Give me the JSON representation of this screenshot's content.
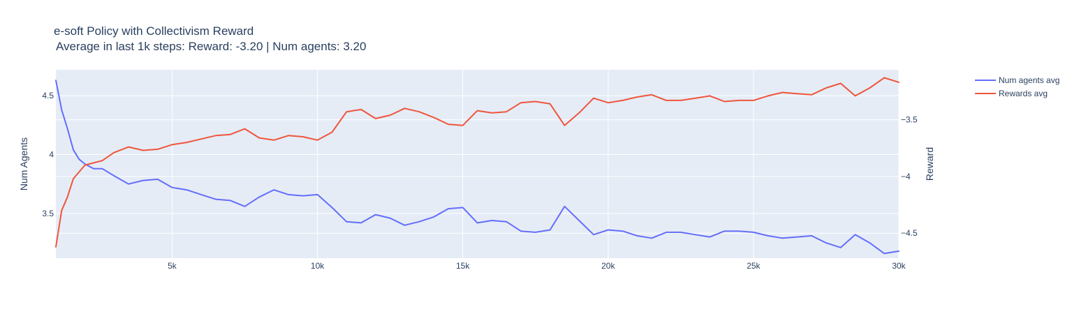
{
  "chart_data": {
    "type": "line",
    "title": "e-soft Policy with Collectivism Reward",
    "subtitle": "Average in last 1k steps:  Reward: -3.20 | Num agents: 3.20",
    "ylabel": "Num Agents",
    "y2label": "Reward",
    "xlim": [
      1000,
      30000
    ],
    "ylim": [
      3.12,
      4.72
    ],
    "y2lim": [
      -4.72,
      -3.06
    ],
    "x_ticks": [
      5000,
      10000,
      15000,
      20000,
      25000,
      30000
    ],
    "x_tick_labels": [
      "5k",
      "10k",
      "15k",
      "20k",
      "25k",
      "30k"
    ],
    "y_ticks": [
      3.5,
      4,
      4.5
    ],
    "y_tick_labels": [
      "3.5",
      "4",
      "4.5"
    ],
    "y2_ticks": [
      -4.5,
      -4,
      -3.5
    ],
    "y2_tick_labels": [
      "−4.5",
      "−4",
      "−3.5"
    ],
    "grid": true,
    "legend_position": "top-right",
    "series": [
      {
        "name": "Num agents avg",
        "axis": "y",
        "color": "#636efa",
        "x": [
          1000,
          1200,
          1400,
          1600,
          1800,
          2000,
          2300,
          2600,
          3000,
          3500,
          4000,
          4500,
          5000,
          5500,
          6000,
          6500,
          7000,
          7500,
          8000,
          8500,
          9000,
          9500,
          10000,
          10500,
          11000,
          11500,
          12000,
          12500,
          13000,
          13500,
          14000,
          14500,
          15000,
          15500,
          16000,
          16500,
          17000,
          17500,
          18000,
          18500,
          19000,
          19500,
          20000,
          20500,
          21000,
          21500,
          22000,
          22500,
          23000,
          23500,
          24000,
          24500,
          25000,
          25500,
          26000,
          26500,
          27000,
          27500,
          28000,
          28500,
          29000,
          29500,
          30000
        ],
        "values": [
          4.63,
          4.38,
          4.22,
          4.04,
          3.96,
          3.92,
          3.88,
          3.88,
          3.82,
          3.75,
          3.78,
          3.79,
          3.72,
          3.7,
          3.66,
          3.62,
          3.61,
          3.56,
          3.64,
          3.7,
          3.66,
          3.65,
          3.66,
          3.55,
          3.43,
          3.42,
          3.49,
          3.46,
          3.4,
          3.43,
          3.47,
          3.54,
          3.55,
          3.42,
          3.44,
          3.43,
          3.35,
          3.34,
          3.36,
          3.56,
          3.44,
          3.32,
          3.36,
          3.35,
          3.31,
          3.29,
          3.34,
          3.34,
          3.32,
          3.3,
          3.35,
          3.35,
          3.34,
          3.31,
          3.29,
          3.3,
          3.31,
          3.25,
          3.21,
          3.32,
          3.25,
          3.16,
          3.18
        ]
      },
      {
        "name": "Rewards avg",
        "axis": "y2",
        "color": "#ef553b",
        "x": [
          1000,
          1200,
          1400,
          1600,
          1800,
          2000,
          2300,
          2600,
          3000,
          3500,
          4000,
          4500,
          5000,
          5500,
          6000,
          6500,
          7000,
          7500,
          8000,
          8500,
          9000,
          9500,
          10000,
          10500,
          11000,
          11500,
          12000,
          12500,
          13000,
          13500,
          14000,
          14500,
          15000,
          15500,
          16000,
          16500,
          17000,
          17500,
          18000,
          18500,
          19000,
          19500,
          20000,
          20500,
          21000,
          21500,
          22000,
          22500,
          23000,
          23500,
          24000,
          24500,
          25000,
          25500,
          26000,
          26500,
          27000,
          27500,
          28000,
          28500,
          29000,
          29500,
          30000
        ],
        "values": [
          -4.62,
          -4.3,
          -4.18,
          -4.02,
          -3.96,
          -3.9,
          -3.88,
          -3.86,
          -3.79,
          -3.74,
          -3.77,
          -3.76,
          -3.72,
          -3.7,
          -3.67,
          -3.64,
          -3.63,
          -3.58,
          -3.66,
          -3.68,
          -3.64,
          -3.65,
          -3.68,
          -3.61,
          -3.43,
          -3.41,
          -3.49,
          -3.46,
          -3.4,
          -3.43,
          -3.48,
          -3.54,
          -3.55,
          -3.42,
          -3.44,
          -3.43,
          -3.35,
          -3.34,
          -3.36,
          -3.55,
          -3.44,
          -3.31,
          -3.35,
          -3.33,
          -3.3,
          -3.28,
          -3.33,
          -3.33,
          -3.31,
          -3.29,
          -3.34,
          -3.33,
          -3.33,
          -3.29,
          -3.26,
          -3.27,
          -3.28,
          -3.22,
          -3.18,
          -3.29,
          -3.22,
          -3.13,
          -3.17
        ]
      }
    ]
  }
}
